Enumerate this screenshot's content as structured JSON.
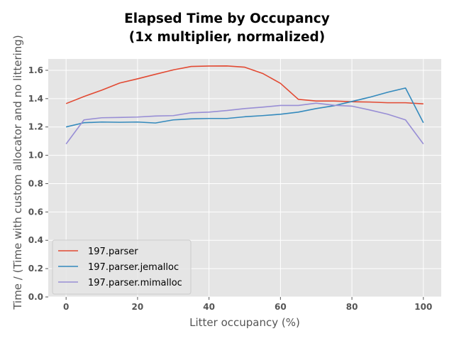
{
  "chart_data": {
    "type": "line",
    "title": [
      "Elapsed Time by Occupancy",
      "(1x multiplier, normalized)"
    ],
    "xlabel": "Litter occupancy (%)",
    "ylabel": "Time / (Time with custom allocator and no littering)",
    "xlim": [
      -5,
      105
    ],
    "ylim": [
      0.0,
      1.68
    ],
    "xticks": [
      0,
      20,
      40,
      60,
      80,
      100
    ],
    "xtick_labels": [
      "0",
      "20",
      "40",
      "60",
      "80",
      "100"
    ],
    "yticks": [
      0.0,
      0.2,
      0.4,
      0.6,
      0.8,
      1.0,
      1.2,
      1.4,
      1.6
    ],
    "ytick_labels": [
      "0.0",
      "0.2",
      "0.4",
      "0.6",
      "0.8",
      "1.0",
      "1.2",
      "1.4",
      "1.6"
    ],
    "grid": true,
    "legend_position": "lower-left",
    "x": [
      0,
      5,
      10,
      15,
      20,
      25,
      30,
      35,
      40,
      45,
      50,
      55,
      60,
      65,
      70,
      75,
      80,
      85,
      90,
      95,
      100
    ],
    "series": [
      {
        "name": "197.parser",
        "color": "#e24a33",
        "values": [
          1.365,
          1.415,
          1.46,
          1.51,
          1.54,
          1.572,
          1.603,
          1.627,
          1.63,
          1.631,
          1.622,
          1.578,
          1.508,
          1.395,
          1.383,
          1.383,
          1.378,
          1.376,
          1.371,
          1.371,
          1.363
        ]
      },
      {
        "name": "197.parser.jemalloc",
        "color": "#348abd",
        "values": [
          1.2,
          1.23,
          1.235,
          1.233,
          1.235,
          1.228,
          1.25,
          1.257,
          1.26,
          1.26,
          1.272,
          1.28,
          1.29,
          1.305,
          1.33,
          1.35,
          1.38,
          1.41,
          1.445,
          1.475,
          1.23
        ]
      },
      {
        "name": "197.parser.mimalloc",
        "color": "#988ed5",
        "values": [
          1.08,
          1.25,
          1.265,
          1.267,
          1.27,
          1.277,
          1.28,
          1.3,
          1.305,
          1.316,
          1.33,
          1.34,
          1.352,
          1.352,
          1.368,
          1.353,
          1.347,
          1.32,
          1.29,
          1.25,
          1.08
        ]
      }
    ]
  }
}
